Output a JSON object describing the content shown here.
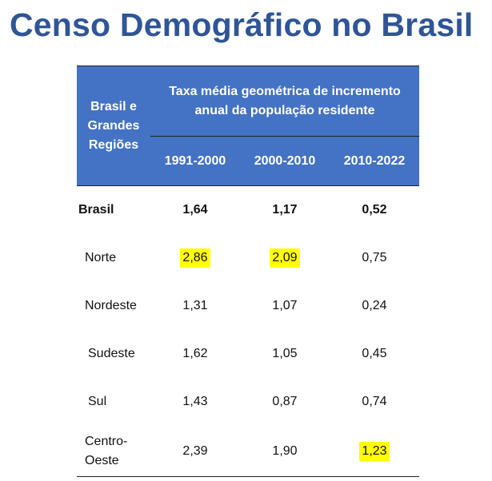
{
  "page": {
    "title": "Censo Demográfico no Brasil"
  },
  "table": {
    "region_header": "Brasil e Grandes Regiões",
    "span_header": "Taxa média geométrica de incremento anual da população residente",
    "periods": [
      "1991-2000",
      "2000-2010",
      "2010-2022"
    ],
    "rows": [
      {
        "region": "Brasil",
        "values": [
          "1,64",
          "1,17",
          "0,52"
        ],
        "highlighted": [
          false,
          false,
          false
        ],
        "bold": true
      },
      {
        "region": "Norte",
        "values": [
          "2,86",
          "2,09",
          "0,75"
        ],
        "highlighted": [
          true,
          true,
          false
        ],
        "bold": false
      },
      {
        "region": "Nordeste",
        "values": [
          "1,31",
          "1,07",
          "0,24"
        ],
        "highlighted": [
          false,
          false,
          false
        ],
        "bold": false
      },
      {
        "region": "Sudeste",
        "values": [
          "1,62",
          "1,05",
          "0,45"
        ],
        "highlighted": [
          false,
          false,
          false
        ],
        "bold": false
      },
      {
        "region": "Sul",
        "values": [
          "1,43",
          "0,87",
          "0,74"
        ],
        "highlighted": [
          false,
          false,
          false
        ],
        "bold": false
      },
      {
        "region": "Centro-Oeste",
        "values": [
          "2,39",
          "1,90",
          "1,23"
        ],
        "highlighted": [
          false,
          false,
          true
        ],
        "bold": false
      }
    ]
  },
  "colors": {
    "title": "#2F5597",
    "header_bg": "#4472C4",
    "highlight": "#FFFF00"
  }
}
